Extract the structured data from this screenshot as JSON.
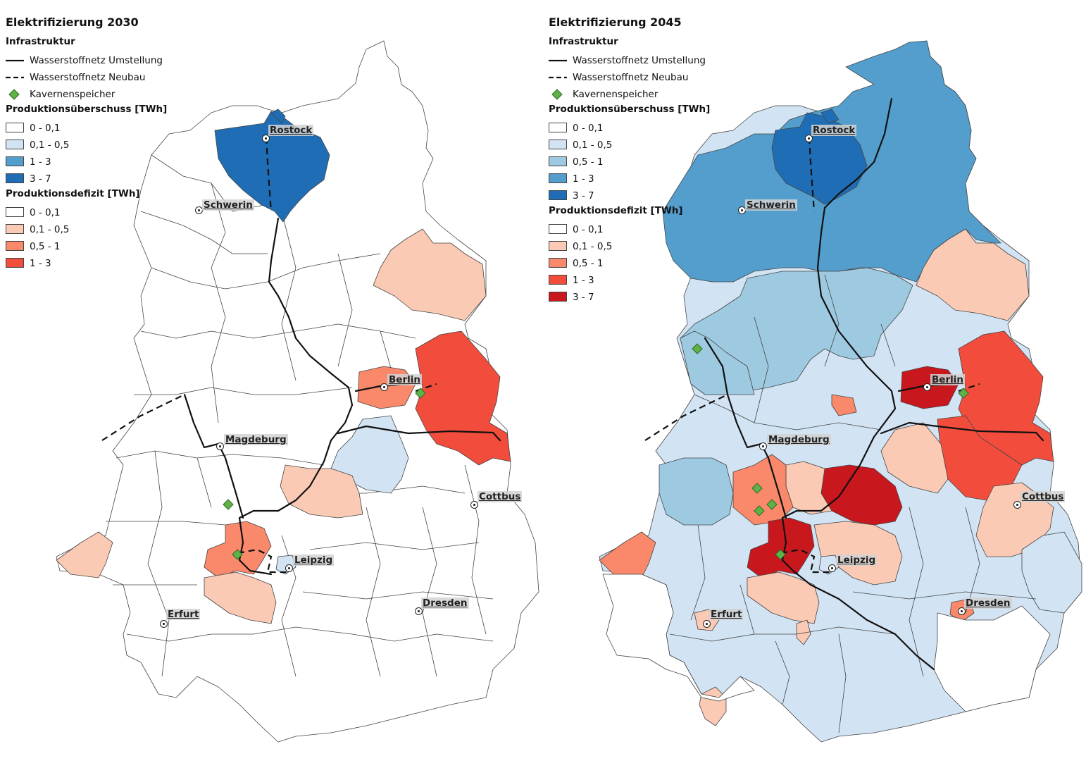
{
  "panels": [
    {
      "title": "Elektrifizierung 2030",
      "legend": {
        "infra_heading": "Infrastruktur",
        "line_solid": "Wasserstoffnetz Umstellung",
        "line_dashed": "Wasserstoffnetz Neubau",
        "storage": "Kavernenspeicher",
        "surplus_heading": "Produktionsüberschuss [TWh]",
        "surplus": [
          {
            "label": "0 - 0,1",
            "color": "#ffffff"
          },
          {
            "label": "0,1 - 0,5",
            "color": "#d2e3f3"
          },
          {
            "label": "1 - 3",
            "color": "#539ecd"
          },
          {
            "label": "3 - 7",
            "color": "#1f6db4"
          }
        ],
        "deficit_heading": "Produktionsdefizit [TWh]",
        "deficit": [
          {
            "label": "0 - 0,1",
            "color": "#ffffff"
          },
          {
            "label": "0,1 - 0,5",
            "color": "#fbcab4"
          },
          {
            "label": "0,5 - 1",
            "color": "#f9896a"
          },
          {
            "label": "1 - 3",
            "color": "#f24d3c"
          }
        ]
      },
      "cities": [
        "Rostock",
        "Schwerin",
        "Berlin",
        "Magdeburg",
        "Cottbus",
        "Leipzig",
        "Dresden",
        "Erfurt"
      ]
    },
    {
      "title": "Elektrifizierung 2045",
      "legend": {
        "infra_heading": "Infrastruktur",
        "line_solid": "Wasserstoffnetz Umstellung",
        "line_dashed": "Wasserstoffnetz Neubau",
        "storage": "Kavernenspeicher",
        "surplus_heading": "Produktionsüberschuss [TWh]",
        "surplus": [
          {
            "label": "0 - 0,1",
            "color": "#ffffff"
          },
          {
            "label": "0,1 - 0,5",
            "color": "#d2e3f3"
          },
          {
            "label": "0,5 - 1",
            "color": "#9ecae1"
          },
          {
            "label": "1 - 3",
            "color": "#539ecd"
          },
          {
            "label": "3 - 7",
            "color": "#1f6db4"
          }
        ],
        "deficit_heading": "Produktionsdefizit [TWh]",
        "deficit": [
          {
            "label": "0 - 0,1",
            "color": "#ffffff"
          },
          {
            "label": "0,1 - 0,5",
            "color": "#fbcab4"
          },
          {
            "label": "0,5 - 1",
            "color": "#f9896a"
          },
          {
            "label": "1 - 3",
            "color": "#f24d3c"
          },
          {
            "label": "3 - 7",
            "color": "#c8171d"
          }
        ]
      },
      "cities": [
        "Rostock",
        "Schwerin",
        "Berlin",
        "Magdeburg",
        "Cottbus",
        "Leipzig",
        "Dresden",
        "Erfurt"
      ]
    }
  ]
}
